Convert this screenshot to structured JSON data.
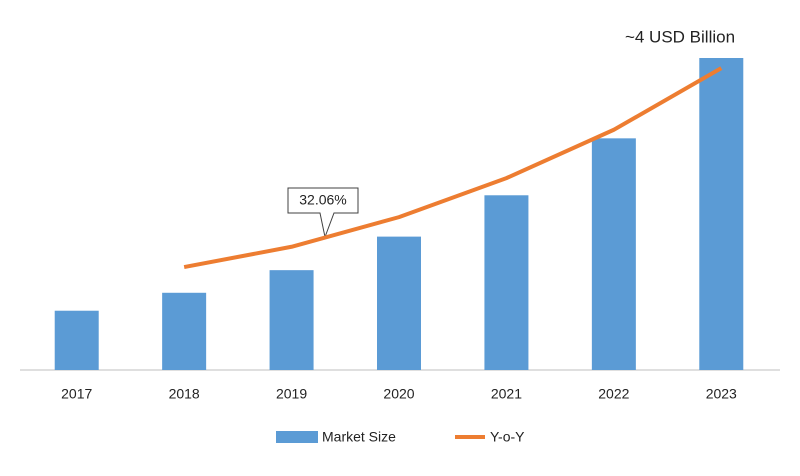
{
  "chart_data": {
    "type": "bar",
    "categories": [
      "2017",
      "2018",
      "2019",
      "2020",
      "2021",
      "2022",
      "2023"
    ],
    "series": [
      {
        "name": "Market Size",
        "color": "#5b9bd5",
        "values": [
          0.76,
          0.99,
          1.28,
          1.71,
          2.24,
          2.97,
          4
        ]
      },
      {
        "name": "Y-o-Y",
        "color": "#ed7d31",
        "type": "line",
        "axis": "y2",
        "values": [
          null,
          13.2,
          15.8,
          19.6,
          24.6,
          30.8,
          38.7
        ]
      }
    ],
    "ylim": [
      0,
      4
    ],
    "y2lim": [
      0,
      40
    ],
    "annotations": [
      "32.06%",
      "~4 USD Billion"
    ],
    "legend": "bottom"
  }
}
